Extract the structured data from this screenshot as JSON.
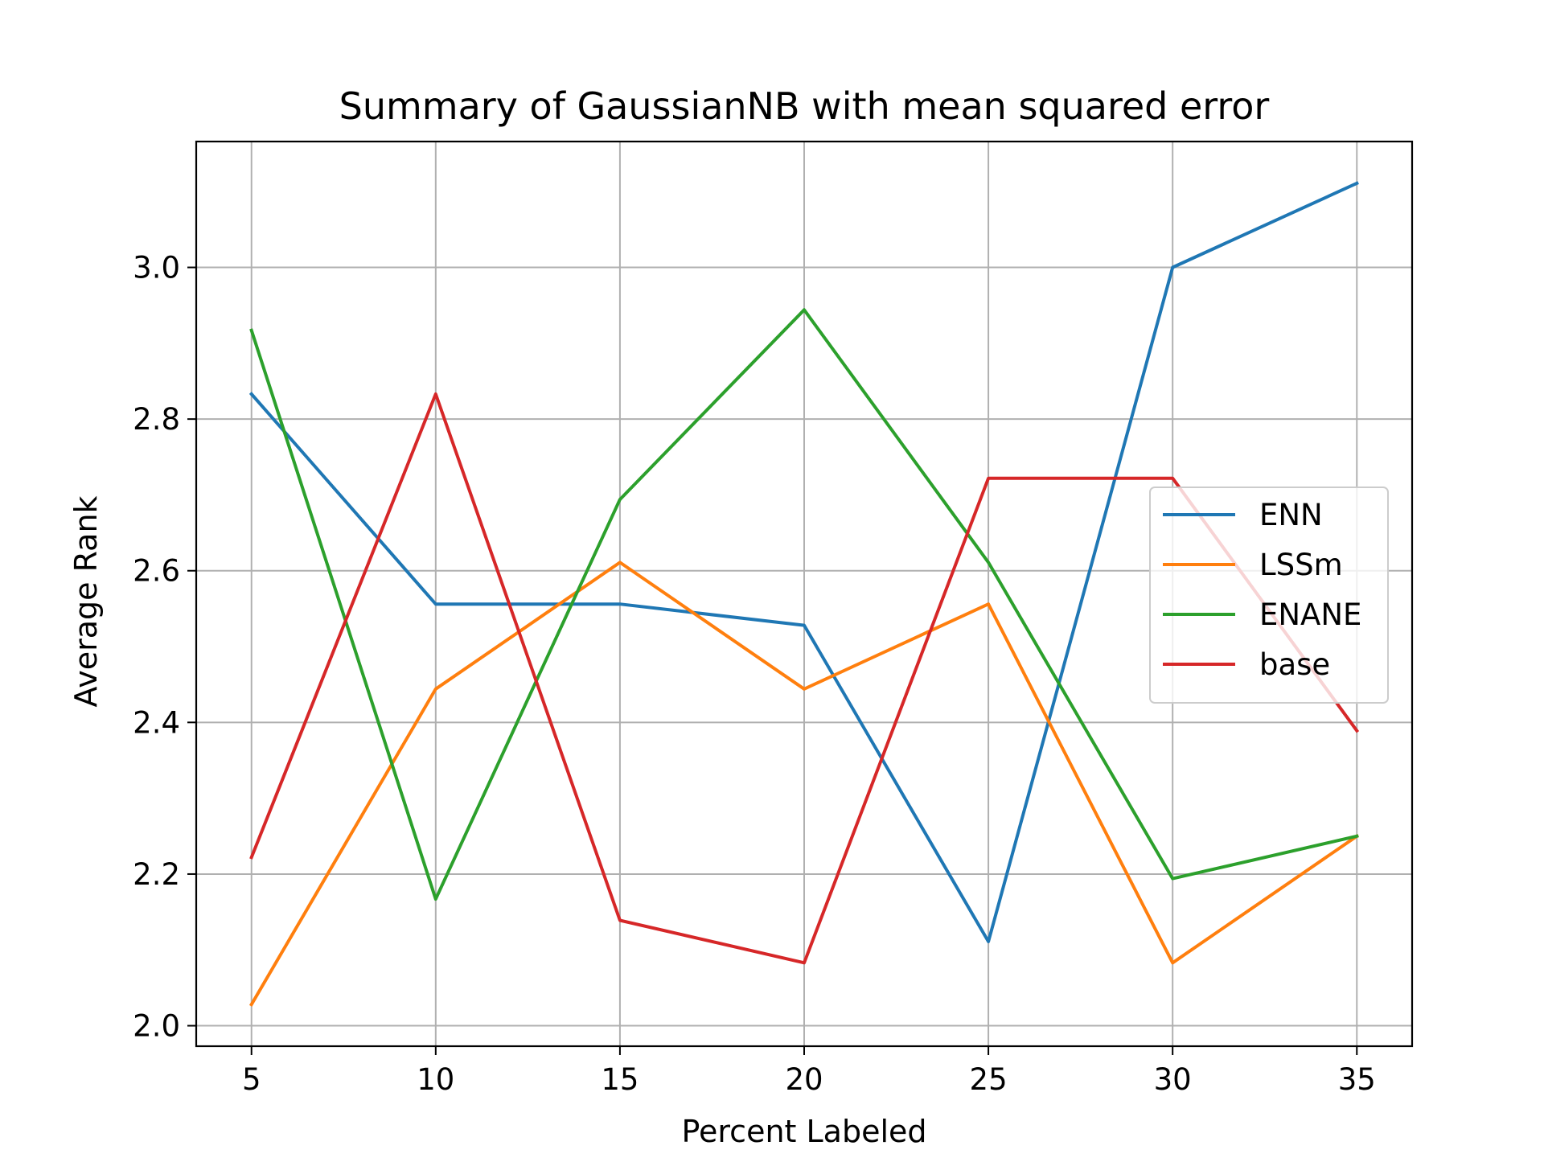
{
  "chart_data": {
    "type": "line",
    "title": "Summary of GaussianNB with mean squared error",
    "xlabel": "Percent Labeled",
    "ylabel": "Average Rank",
    "x": [
      5,
      10,
      15,
      20,
      25,
      30,
      35
    ],
    "xlim": [
      3.5,
      36.5
    ],
    "ylim": [
      1.973,
      3.166
    ],
    "xticks": [
      5,
      10,
      15,
      20,
      25,
      30,
      35
    ],
    "xtick_labels": [
      "5",
      "10",
      "15",
      "20",
      "25",
      "30",
      "35"
    ],
    "yticks": [
      2.0,
      2.2,
      2.4,
      2.6,
      2.8,
      3.0
    ],
    "ytick_labels": [
      "2.0",
      "2.2",
      "2.4",
      "2.6",
      "2.8",
      "3.0"
    ],
    "grid": true,
    "legend_position": "center-right",
    "series": [
      {
        "name": "ENN",
        "color": "#1f77b4",
        "values": [
          2.833,
          2.556,
          2.556,
          2.528,
          2.111,
          3.0,
          3.111
        ]
      },
      {
        "name": "LSSm",
        "color": "#ff7f0e",
        "values": [
          2.028,
          2.444,
          2.611,
          2.444,
          2.556,
          2.083,
          2.25
        ]
      },
      {
        "name": "ENANE",
        "color": "#2ca02c",
        "values": [
          2.917,
          2.167,
          2.694,
          2.944,
          2.611,
          2.194,
          2.25
        ]
      },
      {
        "name": "base",
        "color": "#d62728",
        "values": [
          2.222,
          2.833,
          2.139,
          2.083,
          2.722,
          2.722,
          2.389
        ]
      }
    ]
  }
}
